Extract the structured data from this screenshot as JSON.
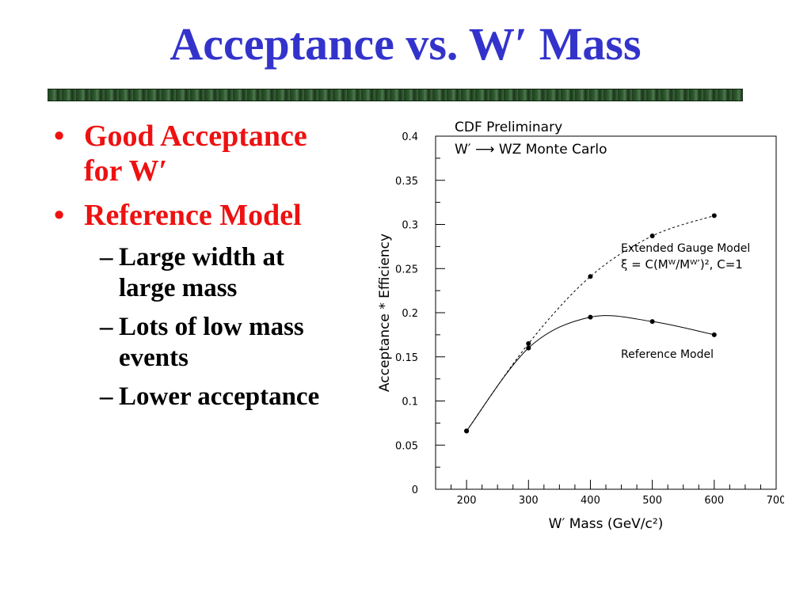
{
  "slide": {
    "title": "Acceptance vs. W′ Mass",
    "colors": {
      "title": "#3333cc",
      "bullet_level1": "#ee1111",
      "bullet_level2": "#000000"
    }
  },
  "bullets": {
    "b1_line1": "Good Acceptance",
    "b1_line2": "for W′",
    "b2": "Reference Model",
    "s1_line1": "Large width at",
    "s1_line2": "large mass",
    "s2_line1": "Lots of low mass",
    "s2_line2": "events",
    "s3": "Lower acceptance",
    "bullet_glyph": "•",
    "dash_glyph": "–"
  },
  "chart_data": {
    "type": "line",
    "title_line1": "CDF Preliminary",
    "title_line2": "W′ ⟶ WZ Monte Carlo",
    "xlabel": "W′ Mass  (GeV/c²)",
    "ylabel": "Acceptance * Efficiency",
    "xlim": [
      150,
      700
    ],
    "ylim": [
      0,
      0.4
    ],
    "xticks": [
      200,
      300,
      400,
      500,
      600,
      700
    ],
    "yticks": [
      0,
      0.05,
      0.1,
      0.15,
      0.2,
      0.25,
      0.3,
      0.35,
      0.4
    ],
    "xtick_labels": [
      "200",
      "300",
      "400",
      "500",
      "600",
      "700"
    ],
    "ytick_labels": [
      "0",
      "0.05",
      "0.1",
      "0.15",
      "0.2",
      "0.25",
      "0.3",
      "0.35",
      "0.4"
    ],
    "grid": false,
    "series": [
      {
        "name": "Extended Gauge Model",
        "label_line1": "Extended Gauge Model",
        "label_line2": "ξ = C(Mᵂ/Mᵂ′)², C=1",
        "style": "dashed",
        "x": [
          200,
          300,
          400,
          500,
          600
        ],
        "y": [
          0.066,
          0.165,
          0.241,
          0.287,
          0.31
        ]
      },
      {
        "name": "Reference Model",
        "label_line1": "Reference Model",
        "style": "solid",
        "x": [
          200,
          300,
          400,
          500,
          600
        ],
        "y": [
          0.066,
          0.16,
          0.195,
          0.19,
          0.175
        ]
      }
    ]
  }
}
